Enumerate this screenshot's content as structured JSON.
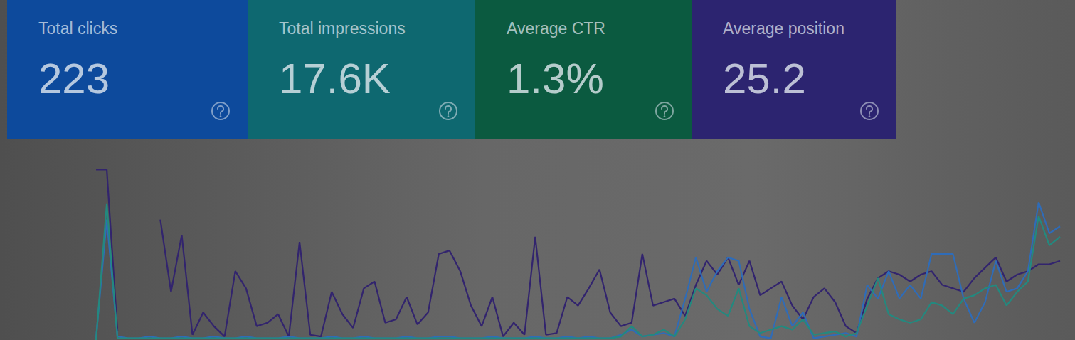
{
  "cards": [
    {
      "label": "Total clicks",
      "value": "223",
      "color": "#0d4a9c"
    },
    {
      "label": "Total impressions",
      "value": "17.6K",
      "color": "#0e6870"
    },
    {
      "label": "Average CTR",
      "value": "1.3%",
      "color": "#0b5a40"
    },
    {
      "label": "Average position",
      "value": "25.2",
      "color": "#2c2470"
    }
  ],
  "chart_data": {
    "type": "line",
    "categories": [
      null,
      null,
      null,
      null,
      null,
      null,
      null,
      null,
      null,
      null,
      null,
      null,
      null,
      null,
      null,
      null,
      null,
      null,
      null,
      null,
      null,
      null,
      null,
      null,
      null,
      null,
      null,
      null,
      null,
      null,
      null,
      null,
      null,
      null,
      null,
      null,
      null,
      null,
      null,
      null,
      null,
      null,
      null,
      null,
      null,
      null,
      null,
      null,
      null,
      null,
      null,
      null,
      null,
      null,
      null,
      null,
      null,
      null,
      null,
      null,
      null,
      null,
      null,
      null,
      null,
      null,
      null,
      null,
      null,
      null,
      null,
      null,
      null,
      null,
      null,
      null,
      null,
      null,
      null,
      null,
      null,
      null,
      null,
      null,
      null,
      null,
      null,
      null,
      null,
      null,
      null
    ],
    "series": [
      {
        "color": "#32246e",
        "values": [
          99,
          99,
          5,
          null,
          null,
          null,
          70,
          28,
          61,
          3,
          16,
          8,
          2,
          40,
          30,
          8,
          10,
          15,
          2,
          57,
          3,
          2,
          28,
          15,
          7,
          30,
          34,
          10,
          12,
          25,
          9,
          16,
          50,
          52,
          40,
          20,
          8,
          25,
          2,
          10,
          3,
          60,
          3,
          4,
          25,
          20,
          30,
          41,
          16,
          8,
          10,
          50,
          20,
          22,
          24,
          14,
          32,
          46,
          38,
          48,
          32,
          46,
          26,
          30,
          34,
          20,
          12,
          25,
          30,
          22,
          8,
          4,
          24,
          36,
          40,
          38,
          34,
          38,
          40,
          32,
          30,
          28,
          36,
          42,
          48,
          34,
          38,
          40,
          44,
          44,
          46
        ]
      },
      {
        "color": "#2f6cb8",
        "values": [
          1,
          70,
          2,
          1,
          1,
          2,
          1,
          1,
          2,
          1,
          1,
          2,
          1,
          1,
          2,
          1,
          1,
          1,
          2,
          1,
          1,
          1,
          2,
          1,
          1,
          2,
          1,
          1,
          1,
          2,
          1,
          1,
          2,
          2,
          1,
          1,
          1,
          2,
          1,
          1,
          1,
          2,
          1,
          1,
          2,
          1,
          2,
          1,
          1,
          3,
          6,
          2,
          3,
          4,
          2,
          24,
          48,
          28,
          40,
          48,
          46,
          18,
          2,
          1,
          25,
          8,
          16,
          1,
          2,
          3,
          4,
          2,
          32,
          24,
          40,
          24,
          32,
          24,
          50,
          50,
          50,
          24,
          10,
          22,
          46,
          28,
          30,
          40,
          80,
          62,
          66
        ]
      },
      {
        "color": "#23897f",
        "values": [
          0,
          79,
          1,
          1,
          1,
          1,
          1,
          1,
          1,
          1,
          1,
          1,
          1,
          1,
          1,
          1,
          1,
          1,
          1,
          1,
          1,
          1,
          1,
          1,
          1,
          1,
          1,
          1,
          1,
          1,
          1,
          1,
          1,
          1,
          1,
          1,
          1,
          1,
          1,
          1,
          1,
          1,
          1,
          1,
          1,
          1,
          1,
          1,
          1,
          2,
          8,
          2,
          3,
          6,
          2,
          12,
          30,
          26,
          18,
          14,
          30,
          8,
          4,
          6,
          8,
          6,
          12,
          3,
          4,
          5,
          2,
          4,
          20,
          36,
          15,
          12,
          10,
          12,
          22,
          20,
          15,
          24,
          26,
          30,
          32,
          20,
          28,
          34,
          72,
          55,
          60
        ]
      }
    ],
    "ylim": [
      0,
      100
    ],
    "grid": false,
    "tick_labels": false
  }
}
